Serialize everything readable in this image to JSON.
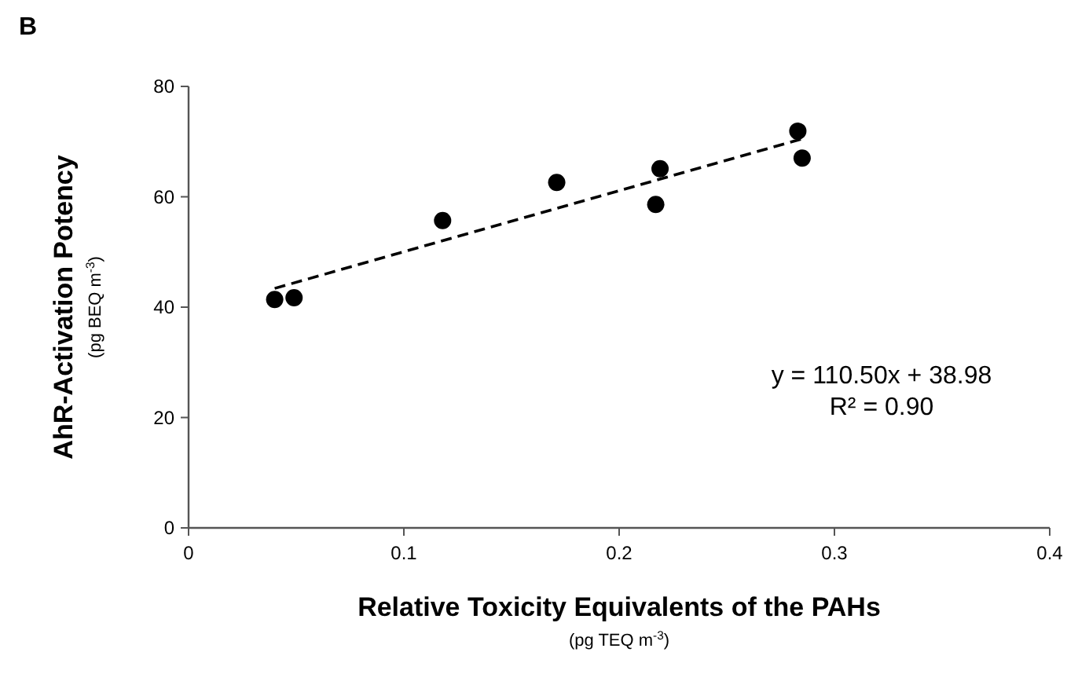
{
  "chart_data": {
    "type": "scatter",
    "title": "B",
    "xlabel": "Relative Toxicity Equivalents of the PAHs\n(pg TEQ m$^{-3}$)",
    "ylabel": "AhR-Activation Potency\n(pg BEQ m$^{-3}$)",
    "xlim": [
      0,
      0.4
    ],
    "xticks": [
      0,
      0.1,
      0.2,
      0.3,
      0.4
    ],
    "ylim": [
      0,
      80
    ],
    "yticks": [
      0,
      20,
      40,
      60,
      80
    ],
    "grid": false,
    "marker": "circle",
    "series": [
      {
        "color": "#000000",
        "x": [
          0.04,
          0.049,
          0.118,
          0.171,
          0.219,
          0.217,
          0.283,
          0.285
        ],
        "values": [
          41.4,
          41.7,
          55.7,
          62.6,
          65.1,
          58.6,
          71.9,
          67.0
        ]
      },
      {
        "type": "line",
        "color": "#000000",
        "line_style": "dashed",
        "marker": "none",
        "x": [
          0.04,
          0.285
        ],
        "values": [
          43.4,
          70.5
        ]
      }
    ],
    "annotations": [
      "y = 110.50x + 38.98",
      "R² = 0.90"
    ]
  }
}
